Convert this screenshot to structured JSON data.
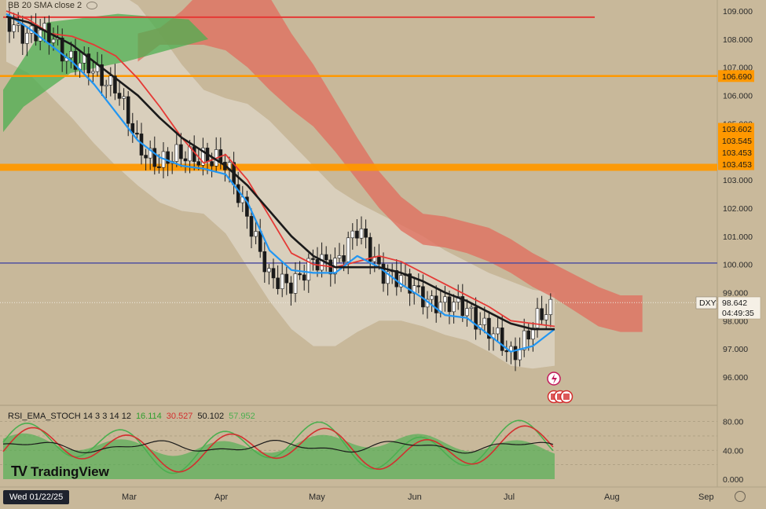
{
  "indicator_legend": {
    "bb": "BB 20 SMA close 2"
  },
  "price_axis": {
    "ticks": [
      "109.000",
      "108.000",
      "107.000",
      "106.000",
      "105.000",
      "103.000",
      "102.000",
      "101.000",
      "100.000",
      "99.000",
      "98.000",
      "97.000",
      "96.000"
    ],
    "level_tags": [
      "106.690",
      "103.602",
      "103.545",
      "103.453",
      "103.453"
    ],
    "symbol": "DXY",
    "last_price": "98.642",
    "countdown": "04:49:35"
  },
  "rsi_legend": {
    "name": "RSI_EMA_STOCH 14 3 3 14 12",
    "v1": "16.114",
    "v2": "30.527",
    "v3": "50.102",
    "v4": "57.952"
  },
  "rsi_axis": {
    "ticks": [
      "80.00",
      "40.00",
      "0.000"
    ]
  },
  "time_axis": {
    "current_date": "Wed 01/22/25",
    "labels": [
      "Mar",
      "Apr",
      "May",
      "Jun",
      "Jul",
      "Aug",
      "Sep"
    ]
  },
  "brand": "TradingView",
  "colors": {
    "background": "#c8b89a",
    "sma": "#1a1a1a",
    "tenkan": "#2196f3",
    "kijun": "#e53935",
    "cloud_bear": "#e07060",
    "cloud_bull": "#4caf50",
    "resistance": "#ff9800",
    "top_line": "#e53935",
    "level_100": "#5050a0"
  },
  "chart_data": {
    "type": "candlestick",
    "symbol": "DXY",
    "ylim": [
      95.5,
      109.3
    ],
    "horizontal_levels": [
      108.78,
      106.69,
      103.45,
      100.05
    ],
    "x": [
      "Jan 22",
      "Jan 27",
      "Feb 3",
      "Feb 10",
      "Feb 17",
      "Feb 24",
      "Mar 3",
      "Mar 10",
      "Mar 17",
      "Mar 24",
      "Mar 31",
      "Apr 7",
      "Apr 14",
      "Apr 21",
      "Apr 28",
      "May 5",
      "May 12",
      "May 19",
      "May 26",
      "Jun 2",
      "Jun 9",
      "Jun 16",
      "Jun 23",
      "Jun 30",
      "Jul 7",
      "Jul 14"
    ],
    "close": [
      108.6,
      108.3,
      108.0,
      107.4,
      106.7,
      106.5,
      104.0,
      103.8,
      103.7,
      104.0,
      103.4,
      101.9,
      99.3,
      99.5,
      99.9,
      100.2,
      101.1,
      100.0,
      99.3,
      99.0,
      98.4,
      98.6,
      97.5,
      96.9,
      97.7,
      98.6
    ],
    "sma20": [
      108.8,
      108.6,
      108.2,
      107.8,
      107.2,
      106.6,
      106.0,
      105.2,
      104.5,
      104.0,
      103.5,
      102.8,
      101.9,
      101.0,
      100.3,
      99.9,
      99.9,
      99.9,
      99.7,
      99.4,
      99.0,
      98.7,
      98.3,
      97.9,
      97.7,
      97.7
    ],
    "rsi_ema_stoch": {
      "v1": 16.114,
      "v2": 30.527,
      "v3": 50.102,
      "v4": 57.952
    }
  }
}
